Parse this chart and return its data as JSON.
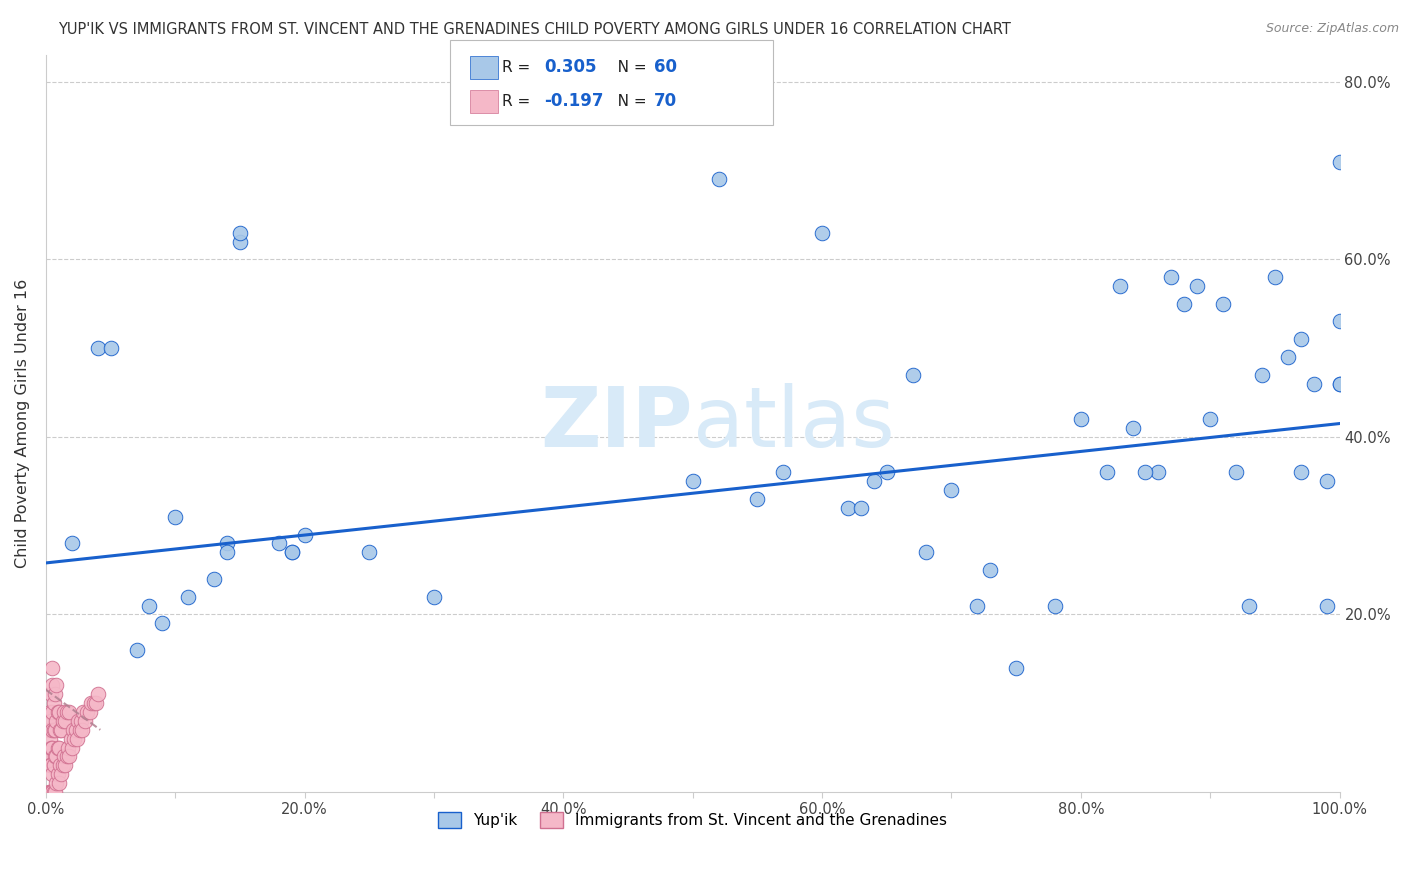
{
  "title": "YUP'IK VS IMMIGRANTS FROM ST. VINCENT AND THE GRENADINES CHILD POVERTY AMONG GIRLS UNDER 16 CORRELATION CHART",
  "source": "Source: ZipAtlas.com",
  "ylabel": "Child Poverty Among Girls Under 16",
  "xlim": [
    0.0,
    1.0
  ],
  "ylim": [
    0.0,
    0.83
  ],
  "xtick_labels": [
    "0.0%",
    "",
    "20.0%",
    "",
    "40.0%",
    "",
    "60.0%",
    "",
    "80.0%",
    "",
    "100.0%"
  ],
  "xtick_vals": [
    0.0,
    0.1,
    0.2,
    0.3,
    0.4,
    0.5,
    0.6,
    0.7,
    0.8,
    0.9,
    1.0
  ],
  "ytick_labels": [
    "20.0%",
    "40.0%",
    "60.0%",
    "80.0%"
  ],
  "ytick_vals": [
    0.2,
    0.4,
    0.6,
    0.8
  ],
  "color_blue": "#a8c8e8",
  "color_pink": "#f5b8c8",
  "line_blue": "#1860cc",
  "line_pink_dash": "#b08090",
  "watermark_color": "#d8eaf8",
  "series1_x": [
    0.02,
    0.04,
    0.05,
    0.07,
    0.08,
    0.09,
    0.1,
    0.11,
    0.13,
    0.14,
    0.15,
    0.15,
    0.18,
    0.19,
    0.2,
    0.25,
    0.3,
    0.5,
    0.52,
    0.55,
    0.57,
    0.6,
    0.62,
    0.64,
    0.65,
    0.67,
    0.7,
    0.72,
    0.75,
    0.78,
    0.8,
    0.82,
    0.84,
    0.86,
    0.87,
    0.88,
    0.89,
    0.9,
    0.91,
    0.92,
    0.93,
    0.94,
    0.95,
    0.96,
    0.97,
    0.97,
    0.98,
    0.99,
    0.99,
    1.0,
    1.0,
    1.0,
    1.0,
    0.14,
    0.19,
    0.63,
    0.68,
    0.73,
    0.83,
    0.85
  ],
  "series1_y": [
    0.28,
    0.5,
    0.5,
    0.16,
    0.21,
    0.19,
    0.31,
    0.22,
    0.24,
    0.28,
    0.62,
    0.63,
    0.28,
    0.27,
    0.29,
    0.27,
    0.22,
    0.35,
    0.69,
    0.33,
    0.36,
    0.63,
    0.32,
    0.35,
    0.36,
    0.47,
    0.34,
    0.21,
    0.14,
    0.21,
    0.42,
    0.36,
    0.41,
    0.36,
    0.58,
    0.55,
    0.57,
    0.42,
    0.55,
    0.36,
    0.21,
    0.47,
    0.58,
    0.49,
    0.51,
    0.36,
    0.46,
    0.21,
    0.35,
    0.53,
    0.46,
    0.46,
    0.71,
    0.27,
    0.27,
    0.32,
    0.27,
    0.25,
    0.57,
    0.36
  ],
  "series2_x": [
    0.002,
    0.002,
    0.002,
    0.003,
    0.003,
    0.003,
    0.003,
    0.004,
    0.004,
    0.004,
    0.004,
    0.004,
    0.005,
    0.005,
    0.005,
    0.005,
    0.005,
    0.005,
    0.005,
    0.006,
    0.006,
    0.006,
    0.006,
    0.007,
    0.007,
    0.007,
    0.007,
    0.008,
    0.008,
    0.008,
    0.008,
    0.009,
    0.009,
    0.009,
    0.01,
    0.01,
    0.01,
    0.011,
    0.011,
    0.012,
    0.012,
    0.013,
    0.013,
    0.014,
    0.014,
    0.015,
    0.015,
    0.016,
    0.016,
    0.017,
    0.018,
    0.018,
    0.019,
    0.02,
    0.021,
    0.022,
    0.023,
    0.024,
    0.025,
    0.026,
    0.027,
    0.028,
    0.029,
    0.03,
    0.032,
    0.034,
    0.035,
    0.037,
    0.039,
    0.04
  ],
  "series2_y": [
    0.0,
    0.04,
    0.07,
    0.0,
    0.03,
    0.06,
    0.09,
    0.0,
    0.03,
    0.05,
    0.08,
    0.11,
    0.0,
    0.02,
    0.05,
    0.07,
    0.09,
    0.12,
    0.14,
    0.0,
    0.03,
    0.07,
    0.1,
    0.0,
    0.04,
    0.07,
    0.11,
    0.01,
    0.04,
    0.08,
    0.12,
    0.02,
    0.05,
    0.09,
    0.01,
    0.05,
    0.09,
    0.03,
    0.07,
    0.02,
    0.07,
    0.03,
    0.08,
    0.04,
    0.09,
    0.03,
    0.08,
    0.04,
    0.09,
    0.05,
    0.04,
    0.09,
    0.06,
    0.05,
    0.07,
    0.06,
    0.07,
    0.06,
    0.08,
    0.07,
    0.08,
    0.07,
    0.09,
    0.08,
    0.09,
    0.09,
    0.1,
    0.1,
    0.1,
    0.11
  ],
  "trendline1_x": [
    0.0,
    1.0
  ],
  "trendline1_y": [
    0.258,
    0.415
  ],
  "trendline2_x": [
    0.0,
    0.042
  ],
  "trendline2_y": [
    0.115,
    0.07
  ]
}
